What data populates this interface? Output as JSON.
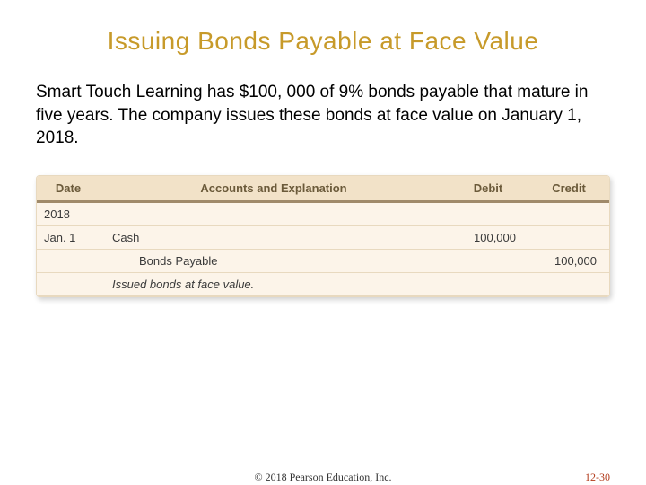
{
  "title": {
    "text": "Issuing Bonds Payable at Face Value",
    "color": "#c79a2a",
    "fontsize": 28
  },
  "body": {
    "text": "Smart Touch Learning has $100, 000 of 9% bonds payable that mature in five years. The company issues these bonds at face value on January 1, 2018.",
    "color": "#000000",
    "fontsize": 19
  },
  "journal": {
    "background_color": "#fcf4e9",
    "header_bg": "#f2e2c8",
    "header_color": "#6b5a3a",
    "border_color": "#e8d9bf",
    "header_rule_color": "#a08a6a",
    "columns": {
      "date": "Date",
      "accounts": "Accounts and Explanation",
      "debit": "Debit",
      "credit": "Credit"
    },
    "rows": {
      "year": "2018",
      "entry_date": "Jan. 1",
      "debit_account": "Cash",
      "debit_amount": "100,000",
      "credit_account": "Bonds Payable",
      "credit_amount": "100,000",
      "explanation": "Issued bonds at face value."
    }
  },
  "footer": {
    "copyright": "© 2018 Pearson Education, Inc.",
    "page": "12-30",
    "page_color": "#b23a1a"
  }
}
